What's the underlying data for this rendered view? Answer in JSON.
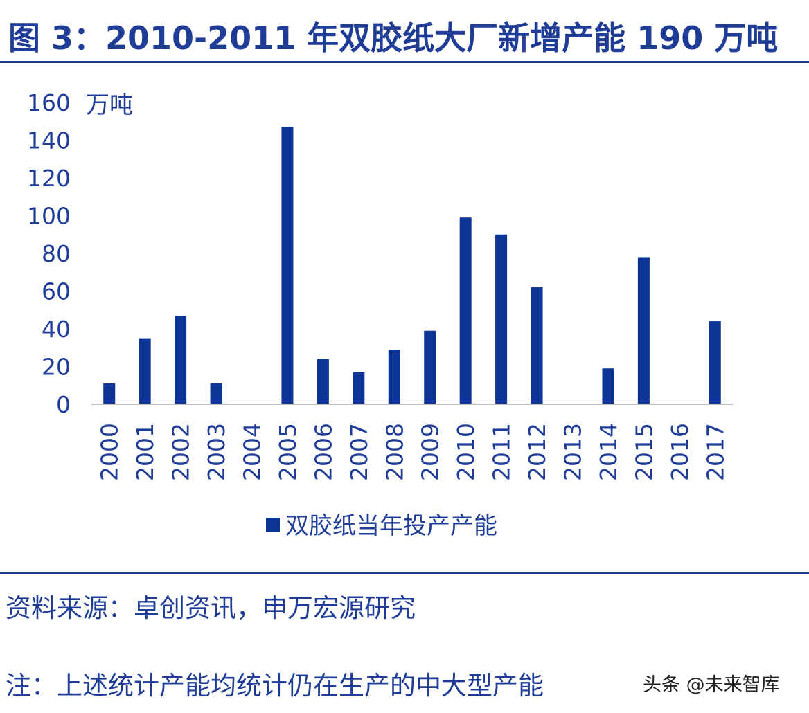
{
  "title": "图 3：2010-2011 年双胶纸大厂新增产能 190 万吨",
  "source": "资料来源：卓创资讯，申万宏源研究",
  "note": "注：上述统计产能均统计仍在生产的中大型产能",
  "watermark": "头条 @未来智库",
  "colors": {
    "accent": "#1f3c96",
    "bar": "#0b3494"
  },
  "chart_data": {
    "type": "bar",
    "categories": [
      "2000",
      "2001",
      "2002",
      "2003",
      "2004",
      "2005",
      "2006",
      "2007",
      "2008",
      "2009",
      "2010",
      "2011",
      "2012",
      "2013",
      "2014",
      "2015",
      "2016",
      "2017"
    ],
    "series": [
      {
        "name": "双胶纸当年投产产能",
        "values": [
          11,
          35,
          47,
          11,
          0,
          147,
          24,
          17,
          29,
          39,
          99,
          90,
          62,
          0,
          19,
          78,
          0,
          44
        ]
      }
    ],
    "y_unit": "万吨",
    "ylim": [
      0,
      160
    ],
    "yticks": [
      "0",
      "20",
      "40",
      "60",
      "80",
      "100",
      "120",
      "140",
      "160"
    ],
    "grid": false,
    "legend_position": "bottom"
  }
}
